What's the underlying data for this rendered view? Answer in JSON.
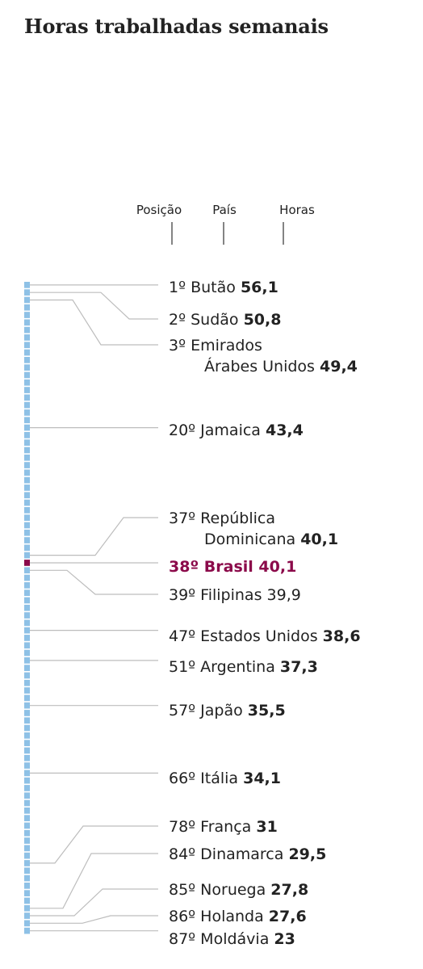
{
  "title": "Horas trabalhadas semanais",
  "columns": {
    "position": "Posição",
    "country": "País",
    "hours": "Horas"
  },
  "chart_data": {
    "type": "ranked-strip",
    "title": "Horas trabalhadas semanais",
    "total_ranks": 87,
    "highlight_rank": 38,
    "colors": {
      "cell": "#8ec1e6",
      "highlight": "#8b0a4a",
      "leader": "#bdbdbd",
      "text": "#222222"
    },
    "labeled": [
      {
        "rank": 1,
        "position": "1º",
        "country": [
          "Butão"
        ],
        "hours": "56,1",
        "value": 56.1
      },
      {
        "rank": 2,
        "position": "2º",
        "country": [
          "Sudão"
        ],
        "hours": "50,8",
        "value": 50.8
      },
      {
        "rank": 3,
        "position": "3º",
        "country": [
          "Emirados",
          "Árabes Unidos"
        ],
        "hours": "49,4",
        "value": 49.4
      },
      {
        "rank": 20,
        "position": "20º",
        "country": [
          "Jamaica"
        ],
        "hours": "43,4",
        "value": 43.4
      },
      {
        "rank": 37,
        "position": "37º",
        "country": [
          "República",
          "Dominicana"
        ],
        "hours": "40,1",
        "value": 40.1
      },
      {
        "rank": 38,
        "position": "38º",
        "country": [
          "Brasil"
        ],
        "hours": "40,1",
        "value": 40.1,
        "highlight": true
      },
      {
        "rank": 39,
        "position": "39º",
        "country": [
          "Filipinas"
        ],
        "hours": "39,9",
        "value": 39.9,
        "plain": true
      },
      {
        "rank": 47,
        "position": "47º",
        "country": [
          "Estados Unidos"
        ],
        "hours": "38,6",
        "value": 38.6
      },
      {
        "rank": 51,
        "position": "51º",
        "country": [
          "Argentina"
        ],
        "hours": "37,3",
        "value": 37.3
      },
      {
        "rank": 57,
        "position": "57º",
        "country": [
          "Japão"
        ],
        "hours": "35,5",
        "value": 35.5
      },
      {
        "rank": 66,
        "position": "66º",
        "country": [
          "Itália"
        ],
        "hours": "34,1",
        "value": 34.1
      },
      {
        "rank": 78,
        "position": "78º",
        "country": [
          "França"
        ],
        "hours": "31",
        "value": 31
      },
      {
        "rank": 84,
        "position": "84º",
        "country": [
          "Dinamarca"
        ],
        "hours": "29,5",
        "value": 29.5
      },
      {
        "rank": 85,
        "position": "85º",
        "country": [
          "Noruega"
        ],
        "hours": "27,8",
        "value": 27.8
      },
      {
        "rank": 86,
        "position": "86º",
        "country": [
          "Holanda"
        ],
        "hours": "27,6",
        "value": 27.6
      },
      {
        "rank": 87,
        "position": "87º",
        "country": [
          "Moldávia"
        ],
        "hours": "23",
        "value": 23
      }
    ]
  }
}
